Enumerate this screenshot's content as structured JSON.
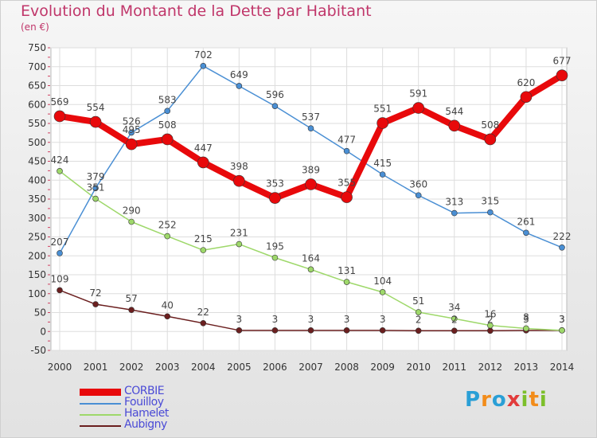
{
  "header": {
    "title": "Evolution du Montant de la Dette par Habitant",
    "subtitle": "(en €)"
  },
  "logo": {
    "text": "Proxiti",
    "letters": [
      {
        "char": "P",
        "color": "#2a9fd6"
      },
      {
        "char": "r",
        "color": "#f28c1a"
      },
      {
        "char": "o",
        "color": "#2a9fd6"
      },
      {
        "char": "x",
        "color": "#e23b3b"
      },
      {
        "char": "i",
        "color": "#7cbf2a"
      },
      {
        "char": "t",
        "color": "#f28c1a"
      },
      {
        "char": "i",
        "color": "#7cbf2a"
      }
    ]
  },
  "chart_data": {
    "type": "line",
    "title": "Evolution du Montant de la Dette par Habitant",
    "subtitle": "(en €)",
    "x": [
      2000,
      2001,
      2002,
      2003,
      2004,
      2005,
      2006,
      2007,
      2008,
      2009,
      2010,
      2011,
      2012,
      2013,
      2014
    ],
    "ylim": [
      -50,
      750
    ],
    "yticks": [
      -50,
      0,
      50,
      100,
      150,
      200,
      250,
      300,
      350,
      400,
      450,
      500,
      550,
      600,
      650,
      700,
      750
    ],
    "grid": true,
    "legend_position": "bottom-left",
    "series": [
      {
        "name": "CORBIE",
        "color": "#e8090b",
        "values": [
          569,
          554,
          495,
          508,
          447,
          398,
          353,
          389,
          355,
          551,
          591,
          544,
          508,
          620,
          677
        ]
      },
      {
        "name": "Fouilloy",
        "color": "#4a8fd4",
        "values": [
          207,
          379,
          526,
          583,
          702,
          649,
          596,
          537,
          477,
          415,
          360,
          313,
          315,
          261,
          222
        ]
      },
      {
        "name": "Hamelet",
        "color": "#9ed86a",
        "values": [
          424,
          351,
          290,
          252,
          215,
          231,
          195,
          164,
          131,
          104,
          51,
          34,
          16,
          8,
          3
        ]
      },
      {
        "name": "Aubigny",
        "color": "#6b1f1f",
        "values": [
          109,
          72,
          57,
          40,
          22,
          3,
          3,
          3,
          3,
          3,
          2,
          2,
          2,
          3,
          3
        ]
      }
    ]
  }
}
